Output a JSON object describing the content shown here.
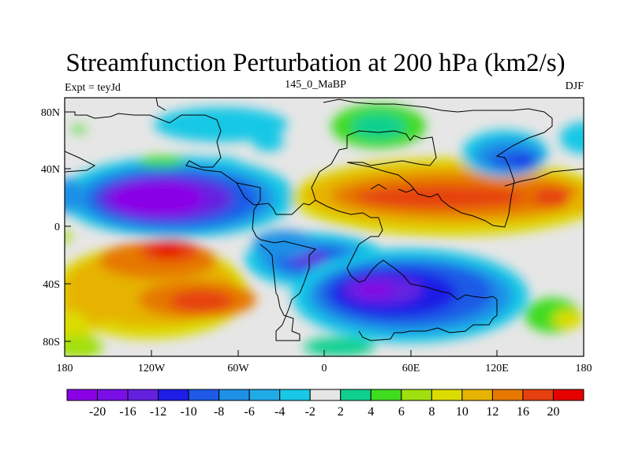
{
  "title": "Streamfunction Perturbation at 200 hPa (km2/s)",
  "left_label": "Expt = teyJd",
  "center_label": "145_0_MaBP",
  "right_label": "DJF",
  "x_ticks": [
    "180",
    "120W",
    "60W",
    "0",
    "60E",
    "120E",
    "180"
  ],
  "y_ticks": [
    "80N",
    "40N",
    "0",
    "40S",
    "80S"
  ],
  "colorbar": {
    "colors": [
      "#8a00e6",
      "#7a10e6",
      "#6520e0",
      "#1e1ee6",
      "#1e5ae6",
      "#1e90e6",
      "#20aae6",
      "#18c8e6",
      "#e6e6e6",
      "#10d090",
      "#40dc20",
      "#a0e010",
      "#dcdc00",
      "#e6b400",
      "#e67800",
      "#e64010",
      "#e60000"
    ],
    "labels": [
      "-20",
      "-16",
      "-12",
      "-10",
      "-8",
      "-6",
      "-4",
      "-2",
      "2",
      "4",
      "6",
      "8",
      "10",
      "12",
      "16",
      "20"
    ]
  }
}
